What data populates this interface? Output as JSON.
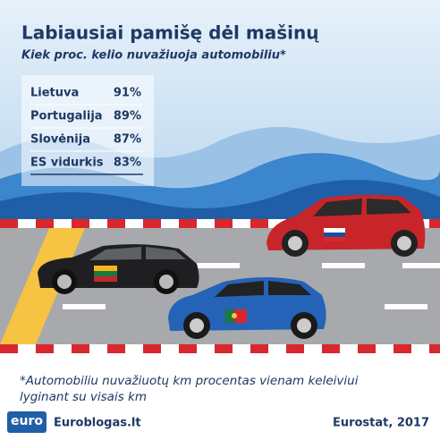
{
  "header": {
    "title": "Labiausiai pamišę dėl mašinų",
    "subtitle": "Kiek proc. kelio nuvažiuoja automobiliu*"
  },
  "table": {
    "rows": [
      [
        "Lietuva",
        "91%"
      ],
      [
        "Portugalija",
        "89%"
      ],
      [
        "Slovėnija",
        "87%"
      ],
      [
        "ES vidurkis",
        "83%"
      ]
    ]
  },
  "footnote": [
    "*Automobiliu nuvažiuotų km procentas vienam keleiviui",
    "lyginant su visais km"
  ],
  "footer": {
    "logo": "euro",
    "site": "Euroblogas.lt",
    "source": "Eurostat, 2017"
  }
}
